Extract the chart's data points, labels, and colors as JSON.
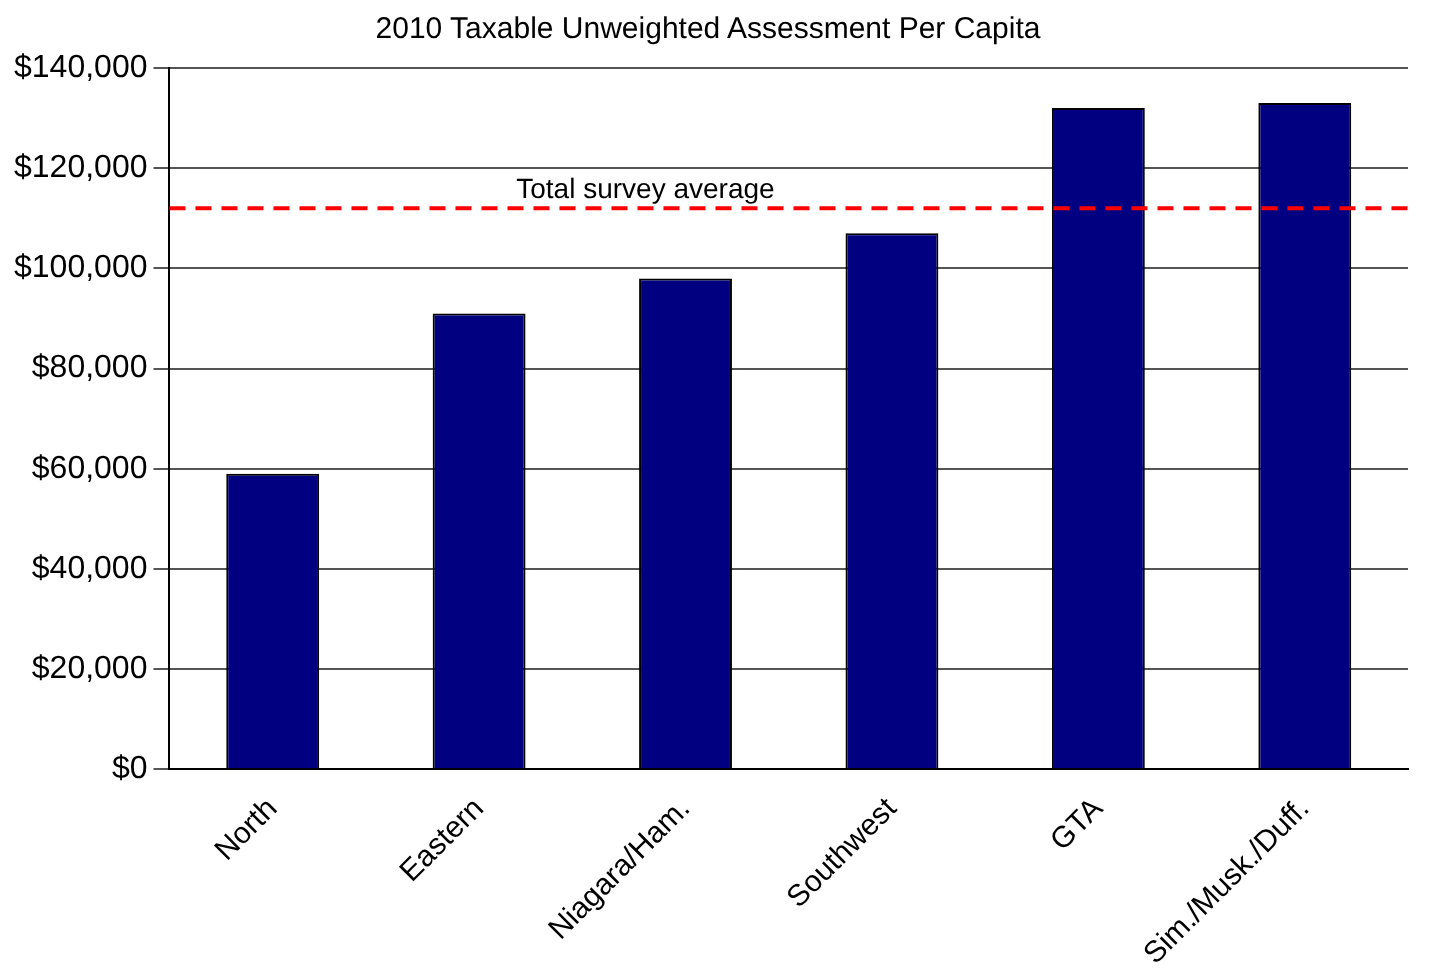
{
  "chart_data": {
    "type": "bar",
    "title": "2010 Taxable Unweighted Assessment Per Capita",
    "categories": [
      "North",
      "Eastern",
      "Niagara/Ham.",
      "Southwest",
      "GTA",
      "Sim./Musk./Duff."
    ],
    "values": [
      59000,
      91000,
      98000,
      107000,
      132000,
      133000
    ],
    "color": "#000080",
    "ylim": [
      0,
      140000
    ],
    "yticks": [
      {
        "value": 0,
        "label": "$0"
      },
      {
        "value": 20000,
        "label": "$20,000"
      },
      {
        "value": 40000,
        "label": "$40,000"
      },
      {
        "value": 60000,
        "label": "$60,000"
      },
      {
        "value": 80000,
        "label": "$80,000"
      },
      {
        "value": 100000,
        "label": "$100,000"
      },
      {
        "value": 120000,
        "label": "$120,000"
      },
      {
        "value": 140000,
        "label": "$140,000"
      }
    ],
    "grid": "y",
    "legend": false,
    "ref_lines": [
      {
        "axis": "y",
        "value": 112000,
        "label": "Total survey average",
        "color": "#ff0000",
        "line_style": "dashed"
      }
    ]
  }
}
